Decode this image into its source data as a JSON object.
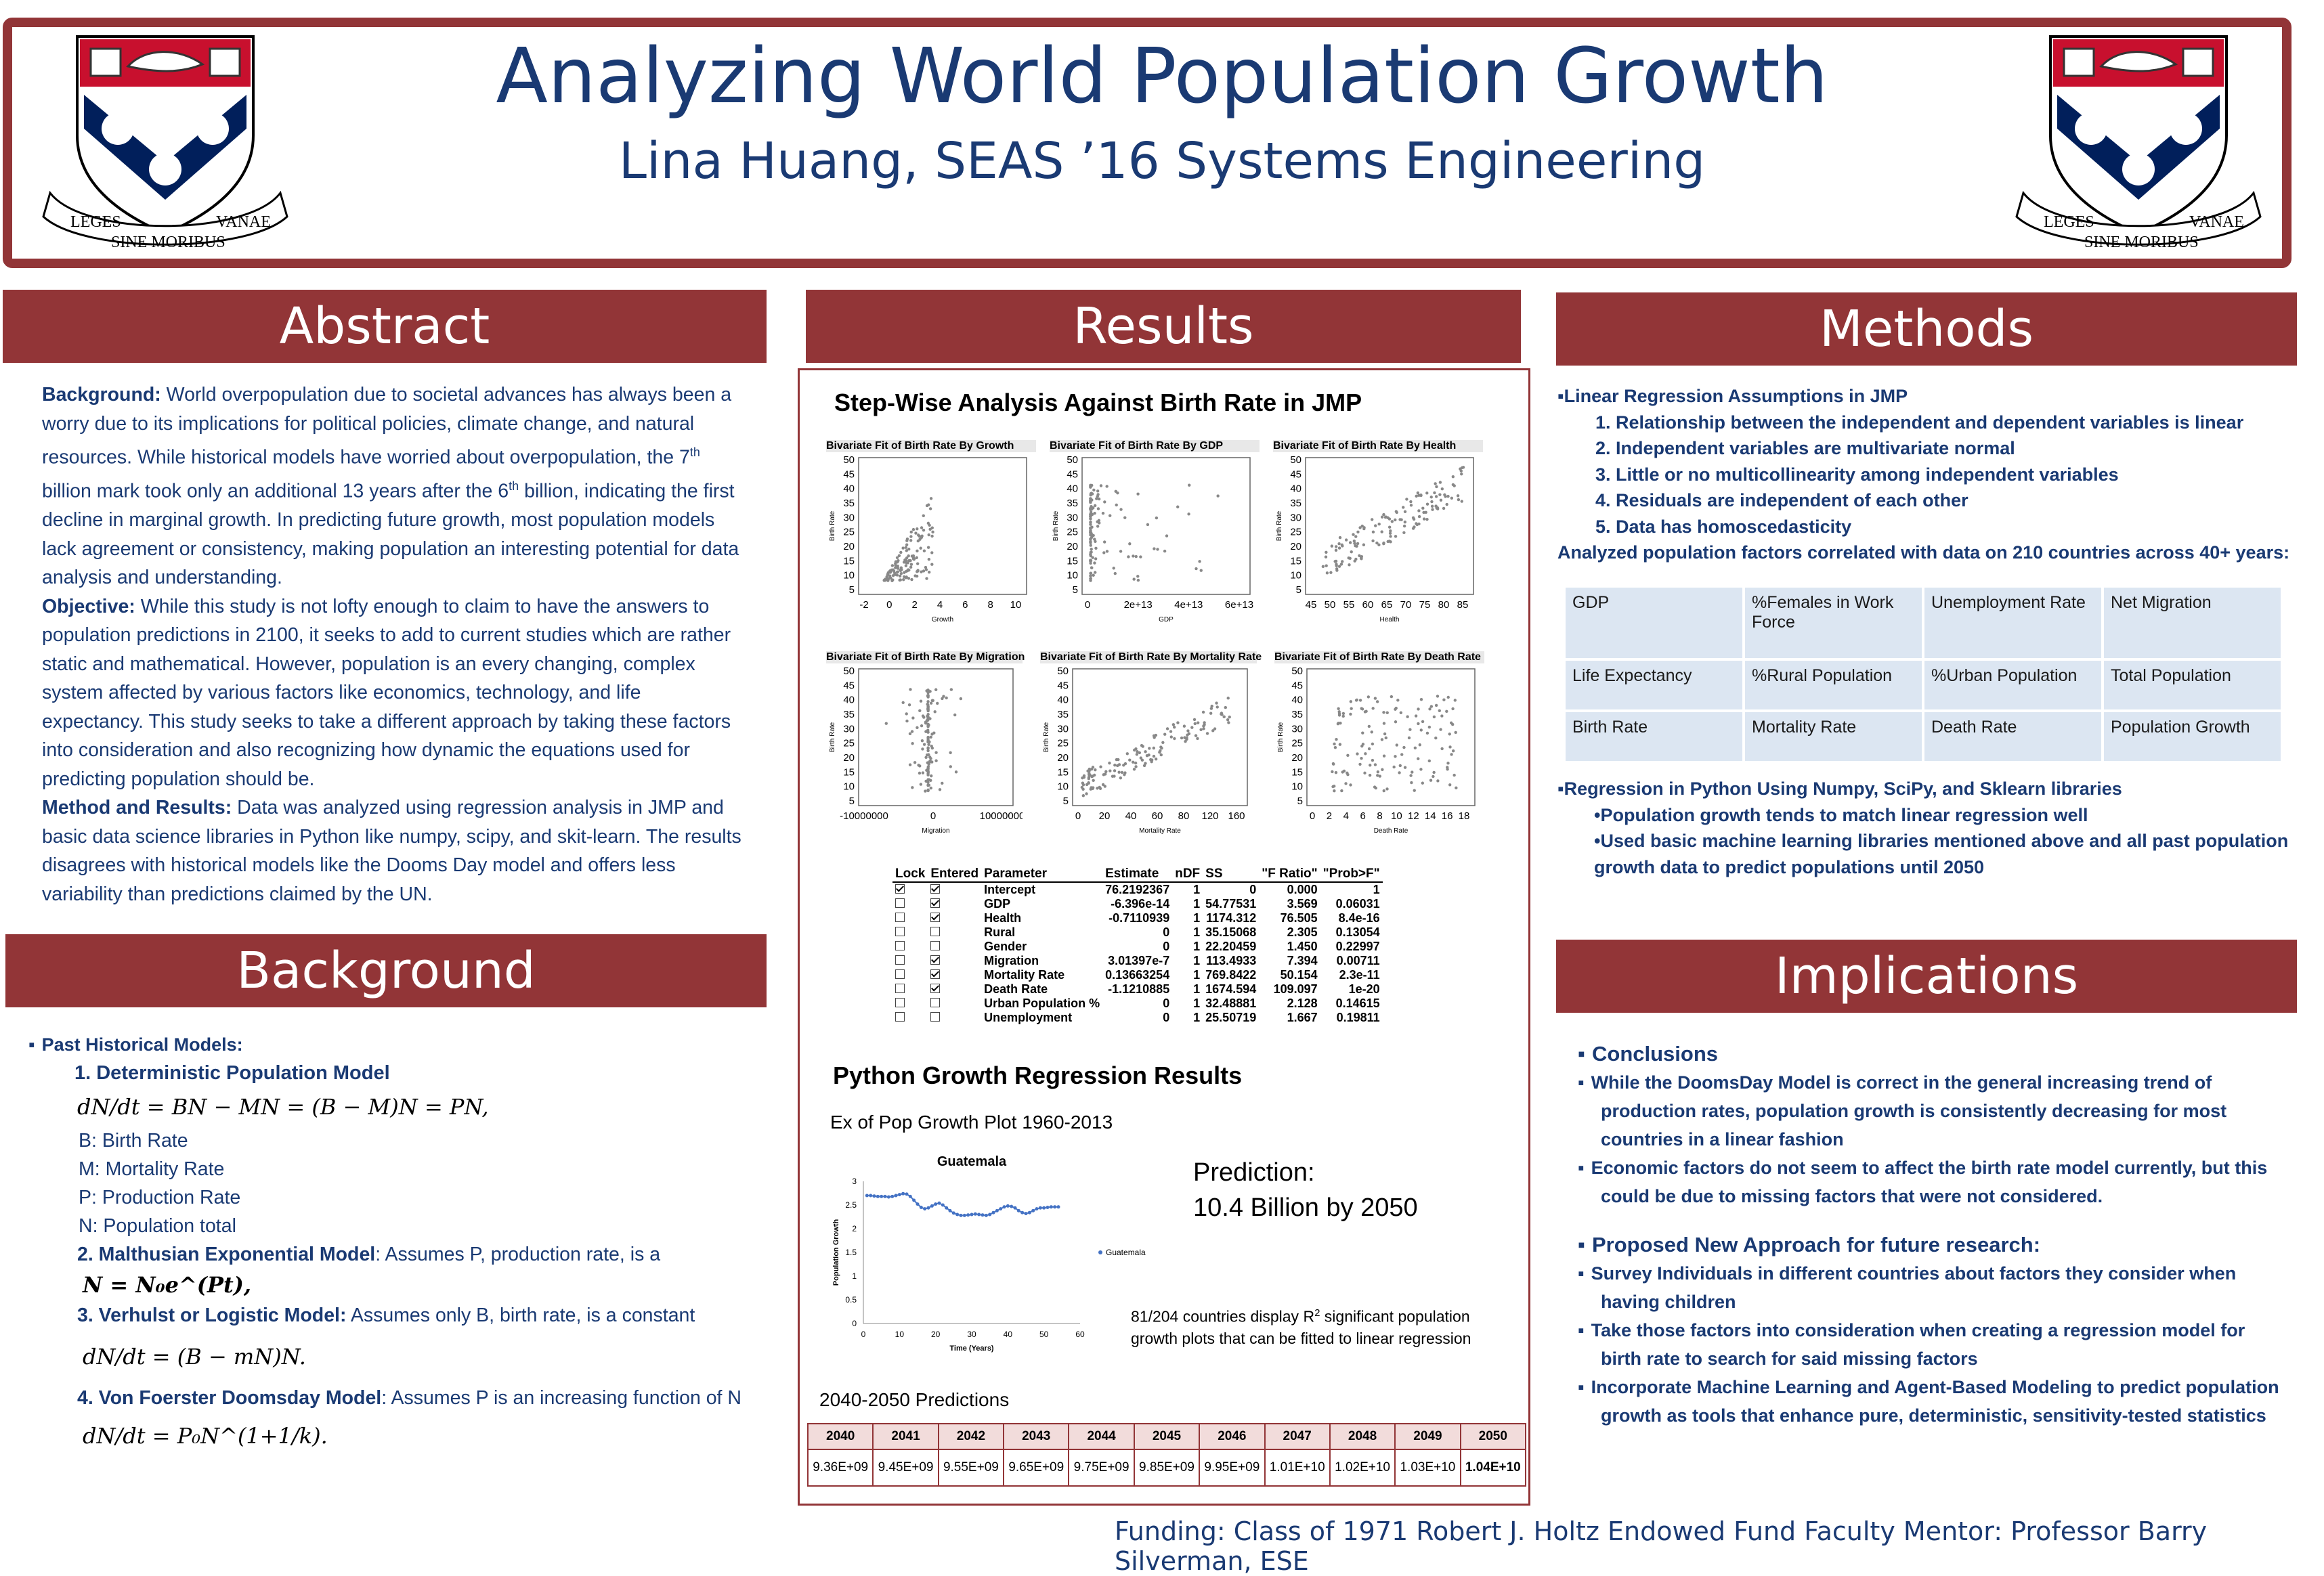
{
  "header": {
    "title": "Analyzing World Population Growth",
    "subtitle": "Lina Huang, SEAS ’16 Systems Engineering",
    "logo_motto": [
      "LEGES",
      "SINE MORIBUS",
      "VANAE"
    ]
  },
  "abstract": {
    "banner": "Abstract",
    "background_label": "Background:",
    "background_text_1": " World overpopulation due to societal advances has always been a worry due to its implications for political policies, climate change, and natural resources. While historical models have worried about overpopulation, the 7",
    "sup": "th",
    "background_text_2": " billion mark took only an additional 13 years after the 6",
    "background_text_3": " billion, indicating the first decline in marginal growth. In predicting future growth, most population models lack agreement or consistency, making population an interesting potential for data analysis and understanding.",
    "objective_label": "Objective:",
    "objective_text": " While this study is not lofty enough to claim to have the answers to population predictions in 2100, it seeks to add to current studies which are rather static and mathematical. However, population is an every changing, complex system affected by various factors like economics, technology, and life expectancy. This study seeks to take a different approach by taking these factors into consideration and also recognizing how dynamic the equations used for predicting population should be.",
    "method_label": "Method and Results:",
    "method_text": " Data was analyzed using regression analysis in JMP and basic data science libraries in Python like numpy, scipy, and skit-learn. The results disagrees with historical models like the Dooms Day model and offers less variability than predictions claimed by the UN."
  },
  "background": {
    "banner": "Background",
    "past_models": "Past Historical Models:",
    "model1": "1. Deterministic Population Model",
    "eq1": "dN/dt = BN − MN = (B − M)N = PN,",
    "defs": [
      "B: Birth Rate",
      "M: Mortality Rate",
      "P: Production Rate",
      "N: Population total"
    ],
    "model2_label": "2. Malthusian Exponential Model",
    "model2_text": ": Assumes P, production rate, is a",
    "eq2": "N = N₀e^(Pt),",
    "model3_label": "3. Verhulst or Logistic Model:",
    "model3_text": " Assumes only B, birth rate, is a constant",
    "eq3": "dN/dt = (B − mN)N.",
    "model4_label": "4. Von Foerster Doomsday Model",
    "model4_text": ": Assumes P is an increasing function of N",
    "eq4": "dN/dt = P₀N^(1+1/k)."
  },
  "results": {
    "banner": "Results",
    "jmp_heading": "Step-Wise Analysis Against Birth Rate in JMP",
    "plots": [
      {
        "title": "Bivariate Fit of Birth Rate By Growth",
        "xlabel": "Growth",
        "ticks": [
          "-2",
          "0",
          "2",
          "4",
          "6",
          "8",
          "10"
        ]
      },
      {
        "title": "Bivariate Fit of Birth Rate By GDP",
        "xlabel": "GDP",
        "ticks": [
          "0",
          "2e+13",
          "4e+13",
          "6e+13"
        ]
      },
      {
        "title": "Bivariate Fit of Birth Rate By Health",
        "xlabel": "Health",
        "ticks": [
          "45",
          "50",
          "55",
          "60",
          "65",
          "70",
          "75",
          "80",
          "85"
        ]
      },
      {
        "title": "Bivariate Fit of Birth Rate By Migration",
        "xlabel": "Migration",
        "ticks": [
          "-10000000",
          "0",
          "10000000"
        ]
      },
      {
        "title": "Bivariate Fit of Birth Rate By Mortality Rate",
        "xlabel": "Mortality Rate",
        "ticks": [
          "0",
          "20",
          "40",
          "60",
          "80",
          "120",
          "160"
        ]
      },
      {
        "title": "Bivariate Fit of Birth Rate By Death Rate",
        "xlabel": "Death Rate",
        "ticks": [
          "0",
          "2",
          "4",
          "6",
          "8",
          "10",
          "12",
          "14",
          "16",
          "18"
        ]
      }
    ],
    "plot_ylabel": "Birth Rate",
    "plot_yticks": [
      "50",
      "45",
      "40",
      "35",
      "30",
      "25",
      "20",
      "15",
      "10",
      "5"
    ],
    "param_headers": [
      "Lock",
      "Entered",
      "Parameter",
      "Estimate",
      "nDF",
      "SS",
      "\"F Ratio\"",
      "\"Prob>F\""
    ],
    "param_rows": [
      {
        "lock": true,
        "entered": true,
        "p": "Intercept",
        "est": "76.2192367",
        "ndf": "1",
        "ss": "0",
        "f": "0.000",
        "prob": "1"
      },
      {
        "lock": false,
        "entered": true,
        "p": "GDP",
        "est": "-6.396e-14",
        "ndf": "1",
        "ss": "54.77531",
        "f": "3.569",
        "prob": "0.06031"
      },
      {
        "lock": false,
        "entered": true,
        "p": "Health",
        "est": "-0.7110939",
        "ndf": "1",
        "ss": "1174.312",
        "f": "76.505",
        "prob": "8.4e-16"
      },
      {
        "lock": false,
        "entered": false,
        "p": "Rural",
        "est": "0",
        "ndf": "1",
        "ss": "35.15068",
        "f": "2.305",
        "prob": "0.13054"
      },
      {
        "lock": false,
        "entered": false,
        "p": "Gender",
        "est": "0",
        "ndf": "1",
        "ss": "22.20459",
        "f": "1.450",
        "prob": "0.22997"
      },
      {
        "lock": false,
        "entered": true,
        "p": "Migration",
        "est": "3.01397e-7",
        "ndf": "1",
        "ss": "113.4933",
        "f": "7.394",
        "prob": "0.00711"
      },
      {
        "lock": false,
        "entered": true,
        "p": "Mortality Rate",
        "est": "0.13663254",
        "ndf": "1",
        "ss": "769.8422",
        "f": "50.154",
        "prob": "2.3e-11"
      },
      {
        "lock": false,
        "entered": true,
        "p": "Death Rate",
        "est": "-1.1210885",
        "ndf": "1",
        "ss": "1674.594",
        "f": "109.097",
        "prob": "1e-20"
      },
      {
        "lock": false,
        "entered": false,
        "p": "Urban Population %",
        "est": "0",
        "ndf": "1",
        "ss": "32.48881",
        "f": "2.128",
        "prob": "0.14615"
      },
      {
        "lock": false,
        "entered": false,
        "p": "Unemployment",
        "est": "0",
        "ndf": "1",
        "ss": "25.50719",
        "f": "1.667",
        "prob": "0.19811"
      }
    ],
    "python_heading": "Python Growth Regression Results",
    "plot_caption": "Ex of Pop Growth Plot 1960-2013",
    "prediction_label": "Prediction:",
    "prediction_value": "10.4 Billion by 2050",
    "r2_text_1": "81/204 countries display R",
    "r2_sup": "2",
    "r2_text_2": " significant population growth plots that can be fitted to linear regression",
    "pred_heading": "2040-2050 Predictions",
    "pred_years": [
      "2040",
      "2041",
      "2042",
      "2043",
      "2044",
      "2045",
      "2046",
      "2047",
      "2048",
      "2049",
      "2050"
    ],
    "pred_values": [
      "9.36E+09",
      "9.45E+09",
      "9.55E+09",
      "9.65E+09",
      "9.75E+09",
      "9.85E+09",
      "9.95E+09",
      "1.01E+10",
      "1.02E+10",
      "1.03E+10",
      "1.04E+10"
    ]
  },
  "chart_data": {
    "type": "line",
    "title": "Guatemala",
    "xlabel": "Time (Years)",
    "ylabel": "Population Growth",
    "xlim": [
      0,
      60
    ],
    "ylim": [
      0,
      3
    ],
    "xticks": [
      "0",
      "10",
      "20",
      "30",
      "40",
      "50",
      "60"
    ],
    "yticks": [
      "0",
      "0.5",
      "1",
      "1.5",
      "2",
      "2.5",
      "3"
    ],
    "legend": "right",
    "series": [
      {
        "name": "Guatemala",
        "x": [
          1,
          2,
          3,
          4,
          5,
          6,
          7,
          8,
          9,
          10,
          11,
          12,
          13,
          14,
          15,
          16,
          17,
          18,
          19,
          20,
          21,
          22,
          23,
          24,
          25,
          26,
          27,
          28,
          29,
          30,
          31,
          32,
          33,
          34,
          35,
          36,
          37,
          38,
          39,
          40,
          41,
          42,
          43,
          44,
          45,
          46,
          47,
          48,
          49,
          50,
          51,
          52,
          53,
          54
        ],
        "y": [
          2.7,
          2.7,
          2.69,
          2.68,
          2.68,
          2.68,
          2.67,
          2.68,
          2.7,
          2.72,
          2.74,
          2.73,
          2.68,
          2.6,
          2.52,
          2.45,
          2.42,
          2.44,
          2.48,
          2.52,
          2.54,
          2.5,
          2.44,
          2.38,
          2.33,
          2.3,
          2.28,
          2.28,
          2.29,
          2.3,
          2.31,
          2.3,
          2.29,
          2.28,
          2.3,
          2.34,
          2.38,
          2.42,
          2.46,
          2.48,
          2.47,
          2.44,
          2.38,
          2.34,
          2.32,
          2.34,
          2.38,
          2.42,
          2.44,
          2.44,
          2.45,
          2.46,
          2.46,
          2.46
        ]
      }
    ]
  },
  "methods": {
    "banner": "Methods",
    "heading1": "Linear Regression Assumptions in JMP",
    "assumptions": [
      "1. Relationship between the independent and dependent variables is linear",
      "2. Independent variables are multivariate normal",
      "3. Little or no multicollinearity among independent variables",
      "4. Residuals are independent of each other",
      "5. Data has homoscedasticity"
    ],
    "analyzed": "Analyzed population factors correlated with data on 210 countries across 40+ years:",
    "factors": [
      [
        "GDP",
        "%Females in Work Force",
        "Unemployment Rate",
        "Net Migration"
      ],
      [
        "Life Expectancy",
        "%Rural Population",
        "%Urban Population",
        "Total Population"
      ],
      [
        "Birth Rate",
        "Mortality Rate",
        "Death Rate",
        "Population Growth"
      ]
    ],
    "heading2": "Regression in Python Using Numpy, SciPy, and Sklearn libraries",
    "py_points": [
      "•Population growth tends to match linear regression well",
      "•Used basic machine learning libraries mentioned above and all past population growth data to predict populations until 2050"
    ]
  },
  "implications": {
    "banner": "Implications",
    "conclusions": "Conclusions",
    "conclusion_points": [
      "While the DoomsDay Model is correct in the general increasing trend of production rates, population growth is consistently decreasing for most countries in a linear fashion",
      "Economic factors do not seem to affect the birth rate model currently, but this could be due to missing factors that were not considered."
    ],
    "proposed": "Proposed New Approach for future research:",
    "proposed_points": [
      "Survey Individuals in different countries about factors they consider when having children",
      "Take those factors into consideration when creating a regression model for birth rate to search for said missing factors",
      "Incorporate Machine Learning and Agent-Based Modeling to predict population growth as tools that enhance pure, deterministic, sensitivity-tested statistics"
    ]
  },
  "footer": "Funding: Class of 1971 Robert J. Holtz Endowed Fund Faculty Mentor: Professor Barry Silverman, ESE",
  "colors": {
    "maroon": "#923537",
    "navy": "#1a3a73",
    "table_blue": "#dce6f2"
  }
}
